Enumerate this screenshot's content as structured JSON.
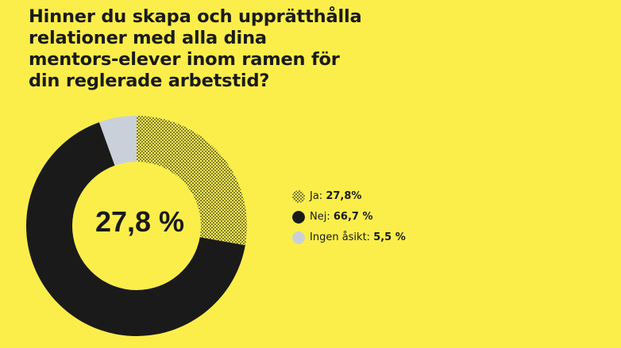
{
  "question": "Hinner du skapa och upprätthålla relationer med alla dina mentors-elever inom ramen för din reglerade arbetstid?",
  "colors": {
    "background": "#fbee4a",
    "dark": "#1a1a1a",
    "grey": "#c9d0da"
  },
  "chart_data": {
    "type": "pie",
    "variant": "donut",
    "title": "Hinner du skapa och upprätthålla relationer med alla dina mentors-elever inom ramen för din reglerade arbetstid?",
    "center_label": "27,8 %",
    "slices": [
      {
        "name": "Ja",
        "value": 27.8,
        "label": "Ja:",
        "value_text": "27,8%",
        "fill": "dotted"
      },
      {
        "name": "Nej",
        "value": 66.7,
        "label": "Nej:",
        "value_text": "66,7 %",
        "fill": "#1a1a1a"
      },
      {
        "name": "Ingen åsikt",
        "value": 5.5,
        "label": "Ingen åsikt:",
        "value_text": "5,5 %",
        "fill": "#c9d0da"
      }
    ],
    "legend_position": "right"
  }
}
